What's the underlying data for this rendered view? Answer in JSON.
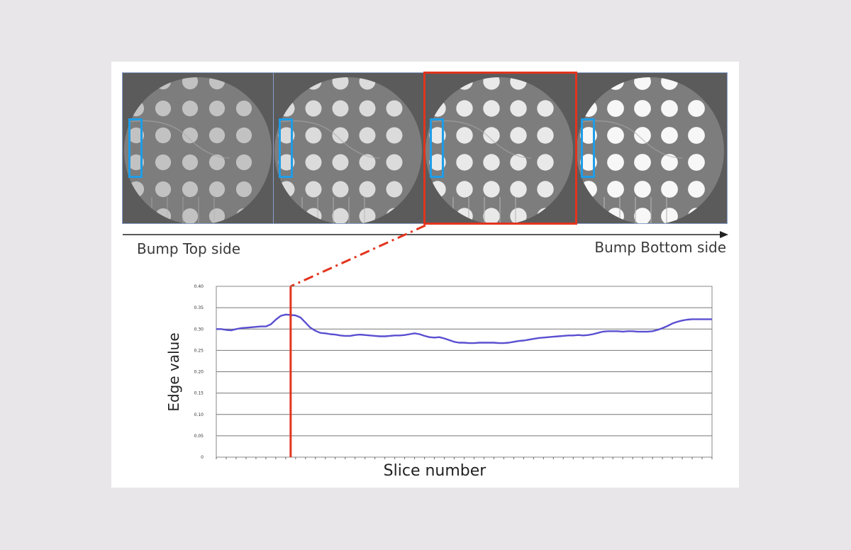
{
  "strip": {
    "label_left": "Bump Top side",
    "label_right": "Bump Bottom side",
    "slices": [
      {
        "name": "slice-1",
        "brightness": 0.55
      },
      {
        "name": "slice-2",
        "brightness": 0.75
      },
      {
        "name": "slice-3",
        "brightness": 0.85
      },
      {
        "name": "slice-4",
        "brightness": 0.95
      }
    ],
    "selected_slice_index": 2,
    "colors": {
      "highlight": "#e2341e",
      "region": "#1e9de8"
    }
  },
  "chart_data": {
    "type": "line",
    "xlabel": "Slice number",
    "ylabel": "Edge value",
    "ylim": [
      0,
      0.4
    ],
    "yticks": [
      "0",
      "0.05",
      "0.10",
      "0.15",
      "0.20",
      "0.25",
      "0.30",
      "0.35",
      "0.40"
    ],
    "grid": true,
    "marker_slice": 16,
    "x": [
      1,
      2,
      3,
      4,
      5,
      6,
      7,
      8,
      9,
      10,
      11,
      12,
      13,
      14,
      15,
      16,
      17,
      18,
      19,
      20,
      21,
      22,
      23,
      24,
      25,
      26,
      27,
      28,
      29,
      30,
      31,
      32,
      33,
      34,
      35,
      36,
      37,
      38,
      39,
      40,
      41,
      42,
      43,
      44,
      45,
      46,
      47,
      48,
      49,
      50,
      51,
      52,
      53,
      54,
      55,
      56,
      57,
      58,
      59,
      60,
      61,
      62,
      63,
      64,
      65,
      66,
      67,
      68,
      69,
      70,
      71,
      72,
      73,
      74,
      75,
      76,
      77,
      78,
      79,
      80,
      81,
      82,
      83,
      84,
      85,
      86,
      87,
      88,
      89,
      90,
      91,
      92,
      93,
      94,
      95,
      96,
      97,
      98,
      99,
      100,
      101
    ],
    "series": [
      {
        "color": "#5a4fd0",
        "values": [
          0.3,
          0.3,
          0.298,
          0.297,
          0.3,
          0.302,
          0.303,
          0.304,
          0.305,
          0.306,
          0.306,
          0.311,
          0.322,
          0.331,
          0.334,
          0.333,
          0.332,
          0.327,
          0.315,
          0.303,
          0.296,
          0.291,
          0.29,
          0.288,
          0.287,
          0.285,
          0.284,
          0.284,
          0.286,
          0.287,
          0.286,
          0.285,
          0.284,
          0.283,
          0.283,
          0.284,
          0.285,
          0.285,
          0.286,
          0.288,
          0.29,
          0.288,
          0.284,
          0.281,
          0.28,
          0.281,
          0.278,
          0.274,
          0.27,
          0.268,
          0.268,
          0.267,
          0.267,
          0.268,
          0.268,
          0.268,
          0.268,
          0.267,
          0.267,
          0.268,
          0.27,
          0.272,
          0.273,
          0.275,
          0.277,
          0.279,
          0.28,
          0.281,
          0.282,
          0.283,
          0.284,
          0.285,
          0.285,
          0.286,
          0.285,
          0.286,
          0.288,
          0.291,
          0.294,
          0.295,
          0.295,
          0.295,
          0.294,
          0.295,
          0.295,
          0.294,
          0.294,
          0.294,
          0.295,
          0.298,
          0.302,
          0.307,
          0.313,
          0.317,
          0.32,
          0.322,
          0.323,
          0.323,
          0.323,
          0.323,
          0.323
        ]
      }
    ]
  }
}
